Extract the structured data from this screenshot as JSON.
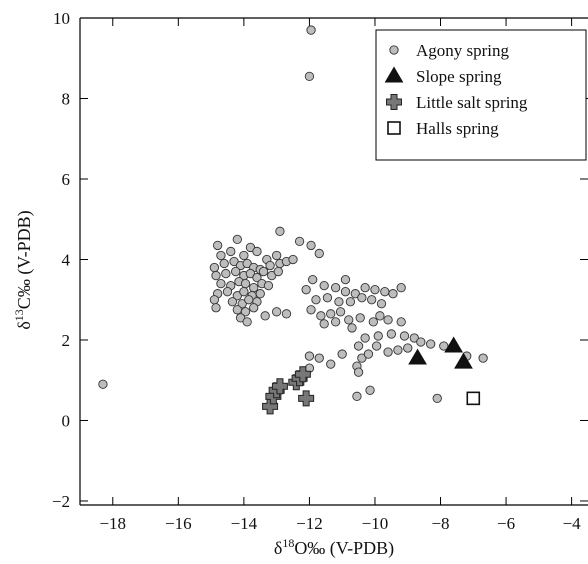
{
  "chart_data": {
    "type": "scatter",
    "xlabel_symbol": "δ",
    "xlabel_sup": "18",
    "xlabel_rest": "O‰ (V-PDB)",
    "ylabel_symbol": "δ",
    "ylabel_sup": "13",
    "ylabel_rest": "C‰ (V-PDB)",
    "xlim": [
      -19,
      -3.5
    ],
    "ylim": [
      -2.1,
      10
    ],
    "xticks": [
      -18,
      -16,
      -14,
      -12,
      -10,
      -8,
      -6,
      -4
    ],
    "yticks": [
      -2,
      0,
      2,
      4,
      6,
      8,
      10
    ],
    "tick_labels_x": [
      "−18",
      "−16",
      "−14",
      "−12",
      "−10",
      "−8",
      "−6",
      "−4"
    ],
    "tick_labels_y": [
      "−2",
      "0",
      "2",
      "4",
      "6",
      "8",
      "10"
    ],
    "legend_position": "top-right",
    "series": [
      {
        "name": "Agony spring",
        "marker": "circle",
        "color": "#bdbdbd",
        "points": [
          [
            -18.3,
            0.9
          ],
          [
            -11.95,
            9.7
          ],
          [
            -12.0,
            8.55
          ],
          [
            -14.8,
            4.35
          ],
          [
            -14.2,
            4.5
          ],
          [
            -13.8,
            4.3
          ],
          [
            -14.7,
            4.1
          ],
          [
            -14.4,
            4.2
          ],
          [
            -14.0,
            4.1
          ],
          [
            -13.6,
            4.2
          ],
          [
            -13.3,
            4.0
          ],
          [
            -13.0,
            4.1
          ],
          [
            -14.9,
            3.8
          ],
          [
            -14.6,
            3.9
          ],
          [
            -14.3,
            3.95
          ],
          [
            -14.1,
            3.85
          ],
          [
            -13.9,
            3.9
          ],
          [
            -13.7,
            3.8
          ],
          [
            -13.5,
            3.75
          ],
          [
            -13.2,
            3.85
          ],
          [
            -12.9,
            3.9
          ],
          [
            -12.7,
            3.95
          ],
          [
            -14.85,
            3.6
          ],
          [
            -14.55,
            3.65
          ],
          [
            -14.25,
            3.7
          ],
          [
            -14.0,
            3.6
          ],
          [
            -13.8,
            3.65
          ],
          [
            -13.6,
            3.55
          ],
          [
            -13.4,
            3.7
          ],
          [
            -13.15,
            3.6
          ],
          [
            -12.95,
            3.7
          ],
          [
            -14.7,
            3.4
          ],
          [
            -14.4,
            3.35
          ],
          [
            -14.15,
            3.45
          ],
          [
            -13.95,
            3.4
          ],
          [
            -13.7,
            3.3
          ],
          [
            -13.45,
            3.4
          ],
          [
            -13.25,
            3.35
          ],
          [
            -14.8,
            3.15
          ],
          [
            -14.5,
            3.2
          ],
          [
            -14.2,
            3.1
          ],
          [
            -14.0,
            3.2
          ],
          [
            -13.75,
            3.1
          ],
          [
            -13.5,
            3.15
          ],
          [
            -14.9,
            3.0
          ],
          [
            -14.35,
            2.95
          ],
          [
            -14.05,
            2.9
          ],
          [
            -13.85,
            3.0
          ],
          [
            -13.6,
            2.95
          ],
          [
            -14.85,
            2.8
          ],
          [
            -14.2,
            2.75
          ],
          [
            -13.95,
            2.7
          ],
          [
            -13.7,
            2.8
          ],
          [
            -14.1,
            2.55
          ],
          [
            -13.35,
            2.6
          ],
          [
            -13.0,
            2.7
          ],
          [
            -12.7,
            2.65
          ],
          [
            -13.9,
            2.45
          ],
          [
            -12.9,
            4.7
          ],
          [
            -12.3,
            4.45
          ],
          [
            -11.95,
            4.35
          ],
          [
            -11.7,
            4.15
          ],
          [
            -12.5,
            4.0
          ],
          [
            -11.9,
            3.5
          ],
          [
            -11.55,
            3.35
          ],
          [
            -11.2,
            3.3
          ],
          [
            -10.9,
            3.5
          ],
          [
            -10.6,
            3.15
          ],
          [
            -10.3,
            3.3
          ],
          [
            -10.0,
            3.25
          ],
          [
            -9.7,
            3.2
          ],
          [
            -9.45,
            3.15
          ],
          [
            -9.2,
            3.3
          ],
          [
            -10.9,
            3.2
          ],
          [
            -12.1,
            3.25
          ],
          [
            -11.8,
            3.0
          ],
          [
            -11.45,
            3.05
          ],
          [
            -11.1,
            2.95
          ],
          [
            -10.75,
            2.95
          ],
          [
            -10.4,
            3.05
          ],
          [
            -10.1,
            3.0
          ],
          [
            -9.8,
            2.9
          ],
          [
            -11.95,
            2.75
          ],
          [
            -11.65,
            2.6
          ],
          [
            -11.35,
            2.65
          ],
          [
            -11.05,
            2.7
          ],
          [
            -10.8,
            2.5
          ],
          [
            -10.45,
            2.55
          ],
          [
            -10.05,
            2.45
          ],
          [
            -9.85,
            2.6
          ],
          [
            -9.6,
            2.5
          ],
          [
            -9.2,
            2.45
          ],
          [
            -11.55,
            2.4
          ],
          [
            -11.2,
            2.45
          ],
          [
            -10.7,
            2.3
          ],
          [
            -10.3,
            2.05
          ],
          [
            -9.9,
            2.1
          ],
          [
            -9.5,
            2.15
          ],
          [
            -9.1,
            2.1
          ],
          [
            -8.8,
            2.05
          ],
          [
            -10.5,
            1.85
          ],
          [
            -9.95,
            1.85
          ],
          [
            -9.6,
            1.7
          ],
          [
            -9.3,
            1.75
          ],
          [
            -9.0,
            1.8
          ],
          [
            -8.6,
            1.95
          ],
          [
            -8.3,
            1.9
          ],
          [
            -7.9,
            1.85
          ],
          [
            -7.2,
            1.6
          ],
          [
            -6.7,
            1.55
          ],
          [
            -12.0,
            1.6
          ],
          [
            -11.7,
            1.55
          ],
          [
            -11.35,
            1.4
          ],
          [
            -11.0,
            1.65
          ],
          [
            -10.55,
            1.35
          ],
          [
            -10.4,
            1.55
          ],
          [
            -10.2,
            1.65
          ],
          [
            -10.5,
            1.2
          ],
          [
            -12.0,
            1.3
          ],
          [
            -10.55,
            0.6
          ],
          [
            -10.15,
            0.75
          ],
          [
            -8.1,
            0.55
          ]
        ]
      },
      {
        "name": "Slope spring",
        "marker": "triangle",
        "color": "#111111",
        "points": [
          [
            -8.7,
            1.55
          ],
          [
            -7.6,
            1.85
          ],
          [
            -7.3,
            1.45
          ]
        ]
      },
      {
        "name": "Little salt spring",
        "marker": "cross",
        "color": "#777777",
        "points": [
          [
            -13.2,
            0.35
          ],
          [
            -13.1,
            0.6
          ],
          [
            -13.0,
            0.75
          ],
          [
            -12.9,
            0.85
          ],
          [
            -12.4,
            0.95
          ],
          [
            -12.3,
            1.05
          ],
          [
            -12.2,
            1.15
          ],
          [
            -12.1,
            0.55
          ]
        ]
      },
      {
        "name": "Halls spring",
        "marker": "square",
        "color": "#ffffff",
        "points": [
          [
            -7.0,
            0.55
          ]
        ]
      }
    ]
  }
}
